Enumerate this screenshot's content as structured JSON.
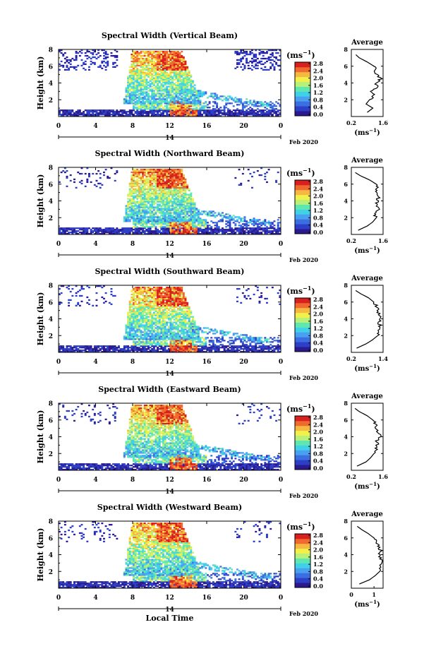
{
  "figure": {
    "xlabel_bottom": "Local Time"
  },
  "colorbar": {
    "unit_label": "(ms",
    "unit_exp": "−1",
    "unit_close": ")",
    "ticks": [
      "0.0",
      "0.4",
      "0.8",
      "1.2",
      "1.6",
      "2.0",
      "2.4",
      "2.8"
    ],
    "colors": [
      "#2b1a8f",
      "#2d3fc7",
      "#3b6ee0",
      "#4aa0f0",
      "#40d0e8",
      "#5ee8b0",
      "#b8f07a",
      "#f2f04a",
      "#f5b840",
      "#f06a30",
      "#d8201e"
    ]
  },
  "chart_data": [
    {
      "type": "heatmap",
      "title": "Spectral Width (Vertical Beam)",
      "ylabel": "Height (km)",
      "xticks": [
        "0",
        "4",
        "8",
        "12",
        "16",
        "20",
        "0"
      ],
      "yticks": [
        "2",
        "4",
        "6",
        "8"
      ],
      "ylim": [
        0,
        8
      ],
      "xlim": [
        0,
        24
      ],
      "date_marker": "14",
      "date_label": "Feb 2020",
      "average": {
        "title": "Average",
        "xlabel_base": "(ms",
        "xlabel_exp": "−1",
        "xlabel_close": ")",
        "xticks": [
          "0.2",
          "1.6"
        ],
        "xlim": [
          0.2,
          1.6
        ],
        "height_km": [
          0.5,
          1.0,
          1.5,
          2.0,
          2.5,
          3.0,
          3.5,
          4.0,
          4.5,
          5.0,
          5.5,
          6.0,
          6.5,
          7.0,
          7.5
        ],
        "width": [
          0.9,
          1.15,
          0.85,
          1.0,
          1.2,
          1.05,
          1.35,
          1.3,
          1.5,
          1.3,
          1.25,
          1.2,
          0.9,
          0.55,
          0.35
        ]
      }
    },
    {
      "type": "heatmap",
      "title": "Spectral Width (Northward Beam)",
      "ylabel": "Height (km)",
      "xticks": [
        "0",
        "4",
        "8",
        "12",
        "16",
        "20",
        "0"
      ],
      "yticks": [
        "2",
        "4",
        "6",
        "8"
      ],
      "ylim": [
        0,
        8
      ],
      "xlim": [
        0,
        24
      ],
      "date_marker": "14",
      "date_label": "Feb 2020",
      "average": {
        "title": "Average",
        "xlabel_base": "(ms",
        "xlabel_exp": "−1",
        "xlabel_close": ")",
        "xticks": [
          "0.2",
          "1.6"
        ],
        "xlim": [
          0.2,
          1.6
        ],
        "height_km": [
          0.5,
          1.0,
          1.5,
          2.0,
          2.5,
          3.0,
          3.5,
          4.0,
          4.5,
          5.0,
          5.5,
          6.0,
          6.5,
          7.0,
          7.5
        ],
        "width": [
          0.5,
          0.9,
          1.15,
          1.3,
          1.2,
          1.4,
          1.3,
          1.35,
          1.4,
          1.3,
          1.35,
          1.3,
          1.0,
          0.6,
          0.3
        ]
      }
    },
    {
      "type": "heatmap",
      "title": "Spectral Width (Southward Beam)",
      "ylabel": "Height (km)",
      "xticks": [
        "0",
        "4",
        "8",
        "12",
        "16",
        "20",
        "0"
      ],
      "yticks": [
        "2",
        "4",
        "6",
        "8"
      ],
      "ylim": [
        0,
        8
      ],
      "xlim": [
        0,
        24
      ],
      "date_marker": "14",
      "date_label": "Feb 2020",
      "average": {
        "title": "Average",
        "xlabel_base": "(ms",
        "xlabel_exp": "−1",
        "xlabel_close": ")",
        "xticks": [
          "0.2",
          "1.4"
        ],
        "xlim": [
          0.2,
          1.4
        ],
        "height_km": [
          0.5,
          1.0,
          1.5,
          2.0,
          2.5,
          3.0,
          3.5,
          4.0,
          4.5,
          5.0,
          5.5,
          6.0,
          6.5,
          7.0,
          7.5
        ],
        "width": [
          0.4,
          0.75,
          1.0,
          1.2,
          1.25,
          1.3,
          1.25,
          1.3,
          1.25,
          1.2,
          1.15,
          1.05,
          0.85,
          0.55,
          0.3
        ]
      }
    },
    {
      "type": "heatmap",
      "title": "Spectral Width (Eastward Beam)",
      "ylabel": "Height (km)",
      "xticks": [
        "0",
        "4",
        "8",
        "12",
        "16",
        "20",
        "0"
      ],
      "yticks": [
        "2",
        "4",
        "6",
        "8"
      ],
      "ylim": [
        0,
        8
      ],
      "xlim": [
        0,
        24
      ],
      "date_marker": "14",
      "date_label": "Feb 2020",
      "average": {
        "title": "Average",
        "xlabel_base": "(ms",
        "xlabel_exp": "−1",
        "xlabel_close": ")",
        "xticks": [
          "0.2",
          "1.6"
        ],
        "xlim": [
          0.2,
          1.6
        ],
        "height_km": [
          0.5,
          1.0,
          1.5,
          2.0,
          2.5,
          3.0,
          3.5,
          4.0,
          4.5,
          5.0,
          5.5,
          6.0,
          6.5,
          7.0,
          7.5
        ],
        "width": [
          0.45,
          0.85,
          1.05,
          1.2,
          1.3,
          1.35,
          1.3,
          1.45,
          1.4,
          1.3,
          1.25,
          1.15,
          0.9,
          0.55,
          0.3
        ]
      }
    },
    {
      "type": "heatmap",
      "title": "Spectral Width (Westward Beam)",
      "ylabel": "Height (km)",
      "xticks": [
        "0",
        "4",
        "8",
        "12",
        "16",
        "20",
        "0"
      ],
      "yticks": [
        "2",
        "4",
        "6",
        "8"
      ],
      "ylim": [
        0,
        8
      ],
      "xlim": [
        0,
        24
      ],
      "date_marker": "14",
      "date_label": "Feb 2020",
      "average": {
        "title": "Average",
        "xlabel_base": "(ms",
        "xlabel_exp": "−1",
        "xlabel_close": ")",
        "xticks": [
          "0",
          "1"
        ],
        "xlim": [
          0,
          1.4
        ],
        "height_km": [
          0.5,
          1.0,
          1.5,
          2.0,
          2.5,
          3.0,
          3.5,
          4.0,
          4.5,
          5.0,
          5.5,
          6.0,
          6.5,
          7.0,
          7.5
        ],
        "width": [
          0.35,
          0.8,
          1.05,
          1.25,
          1.3,
          1.35,
          1.3,
          1.25,
          1.3,
          1.2,
          1.1,
          1.0,
          0.75,
          0.45,
          0.2
        ]
      }
    }
  ]
}
